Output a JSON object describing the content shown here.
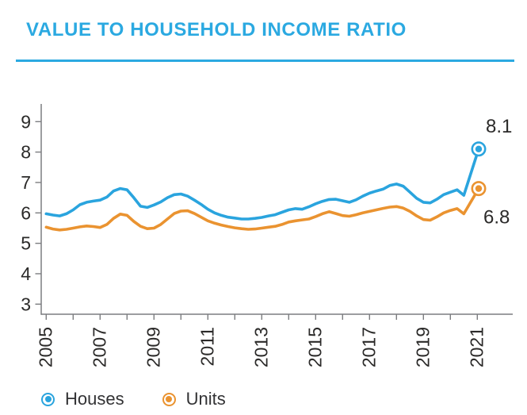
{
  "title": "VALUE TO HOUSEHOLD INCOME RATIO",
  "colors": {
    "title_color": "#2BA9E1",
    "underline_color": "#2BA9E1",
    "houses_color": "#2AA4DE",
    "units_color": "#EA9330",
    "axis_color": "#7C7D80",
    "label_color": "#2B2A29",
    "legend_text_color": "#323234"
  },
  "legend": {
    "items": [
      {
        "label": "Houses",
        "color": "#2AA4DE"
      },
      {
        "label": "Units",
        "color": "#EA9330"
      }
    ]
  },
  "chart_data": {
    "type": "line",
    "title": "VALUE TO HOUSEHOLD INCOME RATIO",
    "xlabel": "",
    "ylabel": "",
    "grid": false,
    "legend_position": "bottom-left",
    "y_ticks": [
      3,
      4,
      5,
      6,
      7,
      8,
      9
    ],
    "ylim": [
      3,
      9.6
    ],
    "x_ticks": [
      2005,
      2006,
      2007,
      2008,
      2009,
      2010,
      2011,
      2012,
      2013,
      2014,
      2015,
      2016,
      2017,
      2018,
      2019,
      2020,
      2021
    ],
    "x_tick_label_step": 2,
    "x": [
      2005,
      2005.25,
      2005.5,
      2005.75,
      2006,
      2006.25,
      2006.5,
      2006.75,
      2007,
      2007.25,
      2007.5,
      2007.75,
      2008,
      2008.25,
      2008.5,
      2008.75,
      2009,
      2009.25,
      2009.5,
      2009.75,
      2010,
      2010.25,
      2010.5,
      2010.75,
      2011,
      2011.25,
      2011.5,
      2011.75,
      2012,
      2012.25,
      2012.5,
      2012.75,
      2013,
      2013.25,
      2013.5,
      2013.75,
      2014,
      2014.25,
      2014.5,
      2014.75,
      2015,
      2015.25,
      2015.5,
      2015.75,
      2016,
      2016.25,
      2016.5,
      2016.75,
      2017,
      2017.25,
      2017.5,
      2017.75,
      2018,
      2018.25,
      2018.5,
      2018.75,
      2019,
      2019.25,
      2019.5,
      2019.75,
      2020,
      2020.25,
      2020.5,
      2021.05
    ],
    "series": [
      {
        "name": "Houses",
        "color": "#2AA4DE",
        "end_label": "8.1",
        "values": [
          5.97,
          5.93,
          5.9,
          5.97,
          6.1,
          6.27,
          6.35,
          6.39,
          6.42,
          6.52,
          6.72,
          6.8,
          6.76,
          6.5,
          6.22,
          6.18,
          6.26,
          6.36,
          6.5,
          6.6,
          6.62,
          6.55,
          6.42,
          6.28,
          6.12,
          6.0,
          5.92,
          5.86,
          5.83,
          5.8,
          5.8,
          5.82,
          5.85,
          5.9,
          5.94,
          6.02,
          6.1,
          6.14,
          6.12,
          6.2,
          6.3,
          6.38,
          6.44,
          6.45,
          6.4,
          6.35,
          6.43,
          6.55,
          6.65,
          6.72,
          6.78,
          6.9,
          6.95,
          6.88,
          6.68,
          6.48,
          6.35,
          6.33,
          6.45,
          6.6,
          6.68,
          6.76,
          6.58,
          8.1
        ]
      },
      {
        "name": "Units",
        "color": "#EA9330",
        "end_label": "6.8",
        "values": [
          5.53,
          5.47,
          5.44,
          5.46,
          5.5,
          5.54,
          5.57,
          5.55,
          5.52,
          5.62,
          5.82,
          5.96,
          5.92,
          5.72,
          5.56,
          5.48,
          5.5,
          5.62,
          5.8,
          5.98,
          6.06,
          6.07,
          5.98,
          5.86,
          5.74,
          5.66,
          5.6,
          5.55,
          5.51,
          5.48,
          5.46,
          5.47,
          5.5,
          5.53,
          5.56,
          5.62,
          5.7,
          5.74,
          5.77,
          5.8,
          5.88,
          5.97,
          6.04,
          5.98,
          5.91,
          5.89,
          5.94,
          6.0,
          6.05,
          6.1,
          6.15,
          6.19,
          6.21,
          6.16,
          6.05,
          5.9,
          5.78,
          5.76,
          5.87,
          6.0,
          6.08,
          6.14,
          5.97,
          6.8
        ]
      }
    ]
  }
}
